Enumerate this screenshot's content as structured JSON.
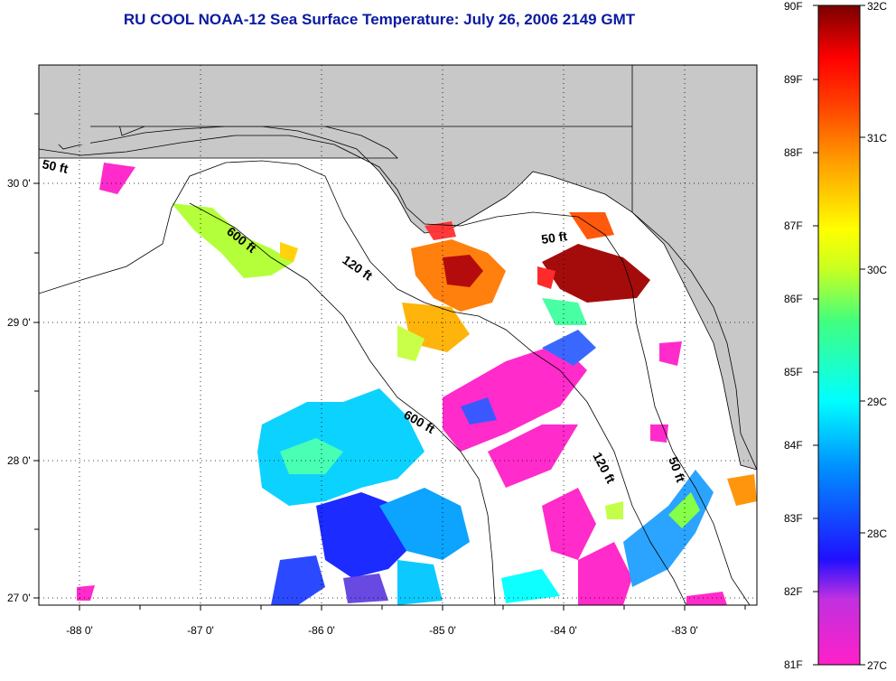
{
  "title": "RU COOL  NOAA-12  Sea Surface Temperature:  July 26, 2006 2149 GMT",
  "lat_ticks": [
    "30 0'",
    "29 0'",
    "28 0'",
    "27 0'"
  ],
  "lon_ticks": [
    "-88 0'",
    "-87 0'",
    "-86 0'",
    "-85 0'",
    "-84 0'",
    "-83 0'"
  ],
  "depth_labels": {
    "d50_west": "50 ft",
    "d600_north": "600 ft",
    "d120_north": "120 ft",
    "d50_bigbend": "50 ft",
    "d600_south": "600 ft",
    "d120_south": "120 ft",
    "d50_south": "50 ft"
  },
  "colorbar": {
    "fahrenheit": [
      "90F",
      "89F",
      "88F",
      "87F",
      "86F",
      "85F",
      "84F",
      "83F",
      "82F",
      "81F"
    ],
    "celsius": [
      "32C",
      "31C",
      "30C",
      "29C",
      "28C",
      "27C"
    ],
    "colors": [
      "#ff20c8",
      "#8a2be2",
      "#1010ff",
      "#00a0ff",
      "#00ffff",
      "#40ff80",
      "#c0ff20",
      "#ffff00",
      "#ffa000",
      "#ff4000",
      "#ff0000",
      "#8b0000"
    ]
  },
  "colors": {
    "land": "#c8c8c8",
    "water": "#ffffff",
    "title": "#0a1aa0"
  }
}
